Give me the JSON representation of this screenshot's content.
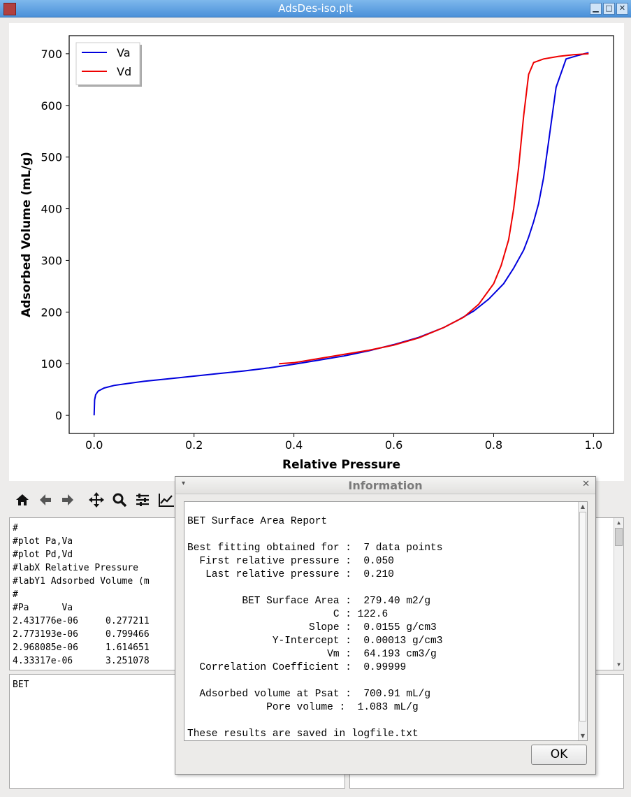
{
  "window": {
    "title": "AdsDes-iso.plt"
  },
  "chart_data": {
    "type": "line",
    "xlabel": "Relative Pressure",
    "ylabel": "Adsorbed Volume (mL/g)",
    "xlim": [
      -0.05,
      1.04
    ],
    "ylim": [
      -35,
      735
    ],
    "xticks": [
      "0.0",
      "0.2",
      "0.4",
      "0.6",
      "0.8",
      "1.0"
    ],
    "yticks": [
      "0",
      "100",
      "200",
      "300",
      "400",
      "500",
      "600",
      "700"
    ],
    "legend": "top-left",
    "series": [
      {
        "name": "Va",
        "color": "#0000dd",
        "x": [
          0.0,
          0.001,
          0.003,
          0.008,
          0.02,
          0.04,
          0.07,
          0.1,
          0.15,
          0.2,
          0.25,
          0.3,
          0.35,
          0.4,
          0.45,
          0.5,
          0.55,
          0.6,
          0.65,
          0.7,
          0.73,
          0.76,
          0.79,
          0.82,
          0.84,
          0.86,
          0.87,
          0.88,
          0.89,
          0.9,
          0.91,
          0.925,
          0.945,
          0.97,
          0.99
        ],
        "y": [
          0,
          30,
          40,
          47,
          53,
          58,
          62,
          66,
          71,
          76,
          81,
          86,
          92,
          99,
          107,
          115,
          125,
          137,
          151,
          170,
          185,
          202,
          225,
          255,
          285,
          320,
          345,
          375,
          410,
          460,
          530,
          635,
          690,
          697,
          702
        ]
      },
      {
        "name": "Vd",
        "color": "#ee0000",
        "x": [
          0.37,
          0.4,
          0.45,
          0.5,
          0.55,
          0.6,
          0.65,
          0.7,
          0.74,
          0.77,
          0.8,
          0.815,
          0.83,
          0.84,
          0.85,
          0.86,
          0.87,
          0.88,
          0.9,
          0.93,
          0.96,
          0.99
        ],
        "y": [
          100,
          102,
          110,
          118,
          126,
          136,
          150,
          170,
          190,
          215,
          255,
          290,
          340,
          400,
          480,
          580,
          660,
          683,
          690,
          695,
          698,
          700
        ]
      }
    ]
  },
  "toolbar": {
    "home": "home-icon",
    "back": "arrow-left-icon",
    "forward": "arrow-right-icon",
    "pan": "move-icon",
    "zoom": "magnifier-icon",
    "configure": "sliders-icon",
    "edit": "line-chart-icon"
  },
  "data_editor": {
    "lines": [
      "#",
      "#plot Pa,Va",
      "#plot Pd,Vd",
      "#labX Relative Pressure",
      "#labY1 Adsorbed Volume (m",
      "#",
      "#Pa      Va",
      "2.431776e-06     0.277211",
      "2.773193e-06     0.799466",
      "2.968085e-06     1.614651",
      "4.33317e-06      3.251078"
    ]
  },
  "command_box": {
    "text": "BET"
  },
  "dialog": {
    "title": "Information",
    "lines": [
      "",
      "BET Surface Area Report",
      "",
      "Best fitting obtained for :  7 data points",
      "  First relative pressure :  0.050",
      "   Last relative pressure :  0.210",
      "",
      "         BET Surface Area :  279.40 m2/g",
      "                        C : 122.6",
      "                    Slope :  0.0155 g/cm3",
      "              Y-Intercept :  0.00013 g/cm3",
      "                       Vm :  64.193 cm3/g",
      "  Correlation Coefficient :  0.99999",
      "",
      "  Adsorbed volume at Psat :  700.91 mL/g",
      "             Pore volume :  1.083 mL/g",
      "",
      "These results are saved in logfile.txt"
    ],
    "ok_label": "OK"
  }
}
